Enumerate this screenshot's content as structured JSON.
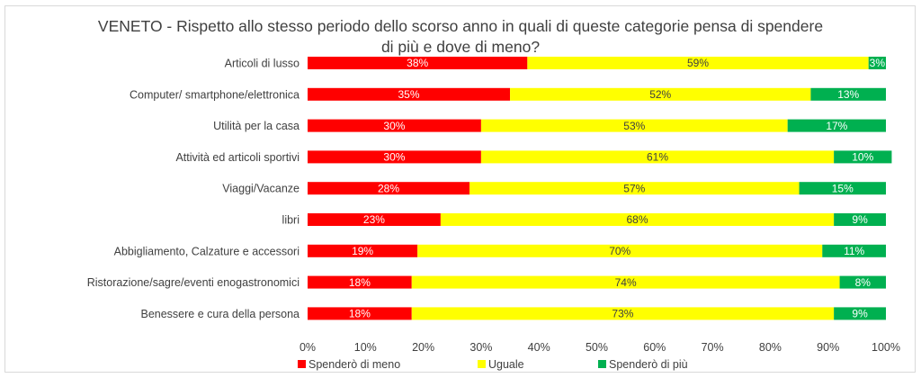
{
  "chart_data": {
    "type": "bar",
    "orientation": "horizontal",
    "stacked": "percent",
    "title_line1": "VENETO - Rispetto allo stesso periodo dello scorso anno in quali di queste categorie pensa di spendere",
    "title_line2": "di più e dove di meno?",
    "categories": [
      "Articoli di lusso",
      "Computer/ smartphone/elettronica",
      "Utilità per la casa",
      "Attività ed articoli sportivi",
      "Viaggi/Vacanze",
      "libri",
      "Abbigliamento, Calzature e accessori",
      "Ristorazione/sagre/eventi enogastronomici",
      "Benessere e cura della persona"
    ],
    "series": [
      {
        "name": "Spenderò di meno",
        "color": "#ff0000",
        "label_color": "#ffffff",
        "values": [
          38,
          35,
          30,
          30,
          28,
          23,
          19,
          18,
          18
        ]
      },
      {
        "name": "Uguale",
        "color": "#ffff00",
        "label_color": "#404040",
        "values": [
          59,
          52,
          53,
          61,
          57,
          68,
          70,
          74,
          73
        ]
      },
      {
        "name": "Spenderò di più",
        "color": "#00b050",
        "label_color": "#ffffff",
        "values": [
          3,
          13,
          17,
          10,
          15,
          9,
          11,
          8,
          9
        ]
      }
    ],
    "x_ticks": [
      "0%",
      "10%",
      "20%",
      "30%",
      "40%",
      "50%",
      "60%",
      "70%",
      "80%",
      "90%",
      "100%"
    ],
    "xlim": [
      0,
      100
    ],
    "grid": false,
    "legend_position": "bottom"
  }
}
